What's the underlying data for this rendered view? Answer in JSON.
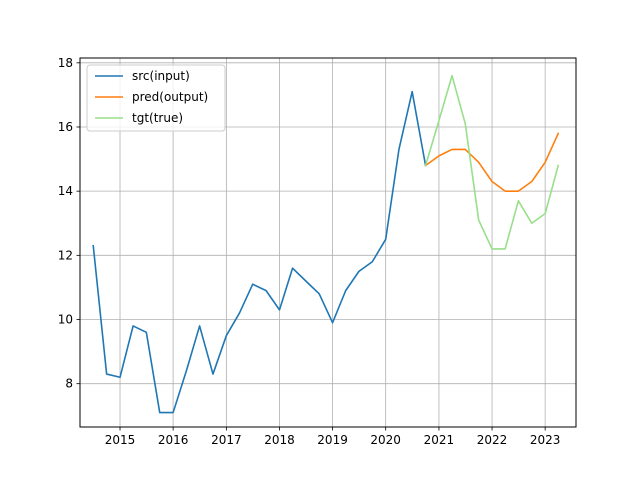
{
  "chart_data": {
    "type": "line",
    "title": "",
    "xlabel": "",
    "ylabel": "",
    "xlim": [
      "2014-04-01",
      "2023-08-01"
    ],
    "ylim": [
      6.65,
      18.15
    ],
    "grid": true,
    "legend_placement": "top-left",
    "x_ticks": [
      "2015",
      "2016",
      "2017",
      "2018",
      "2019",
      "2020",
      "2021",
      "2022",
      "2023"
    ],
    "y_ticks": [
      8,
      10,
      12,
      14,
      16,
      18
    ],
    "series": [
      {
        "name": "src(input)",
        "color": "#1f77b4",
        "x": [
          "2014-07-01",
          "2014-10-01",
          "2015-01-01",
          "2015-04-01",
          "2015-07-01",
          "2015-10-01",
          "2016-01-01",
          "2016-04-01",
          "2016-07-01",
          "2016-10-01",
          "2017-01-01",
          "2017-04-01",
          "2017-07-01",
          "2017-10-01",
          "2018-01-01",
          "2018-04-01",
          "2018-07-01",
          "2018-10-01",
          "2019-01-01",
          "2019-04-01",
          "2019-07-01",
          "2019-10-01",
          "2020-01-01",
          "2020-04-01",
          "2020-07-01",
          "2020-10-01"
        ],
        "values": [
          12.3,
          8.3,
          8.2,
          9.8,
          9.6,
          7.1,
          7.1,
          8.4,
          9.8,
          8.3,
          9.5,
          10.2,
          11.1,
          10.9,
          10.3,
          11.6,
          11.2,
          10.8,
          9.9,
          10.9,
          11.5,
          11.8,
          12.5,
          15.3,
          17.1,
          14.8
        ]
      },
      {
        "name": "pred(output)",
        "color": "#ff7f0e",
        "x": [
          "2020-10-01",
          "2021-01-01",
          "2021-04-01",
          "2021-07-01",
          "2021-10-01",
          "2022-01-01",
          "2022-04-01",
          "2022-07-01",
          "2022-10-01",
          "2023-01-01",
          "2023-04-01"
        ],
        "values": [
          14.8,
          15.1,
          15.3,
          15.3,
          14.9,
          14.3,
          14.0,
          14.0,
          14.3,
          14.9,
          15.8
        ]
      },
      {
        "name": "tgt(true)",
        "color": "#98df8a",
        "x": [
          "2020-10-01",
          "2021-01-01",
          "2021-04-01",
          "2021-07-01",
          "2021-10-01",
          "2022-01-01",
          "2022-04-01",
          "2022-07-01",
          "2022-10-01",
          "2023-01-01",
          "2023-04-01"
        ],
        "values": [
          14.8,
          16.2,
          17.6,
          16.1,
          13.1,
          12.2,
          12.2,
          13.7,
          13.0,
          13.3,
          14.8
        ]
      }
    ]
  }
}
